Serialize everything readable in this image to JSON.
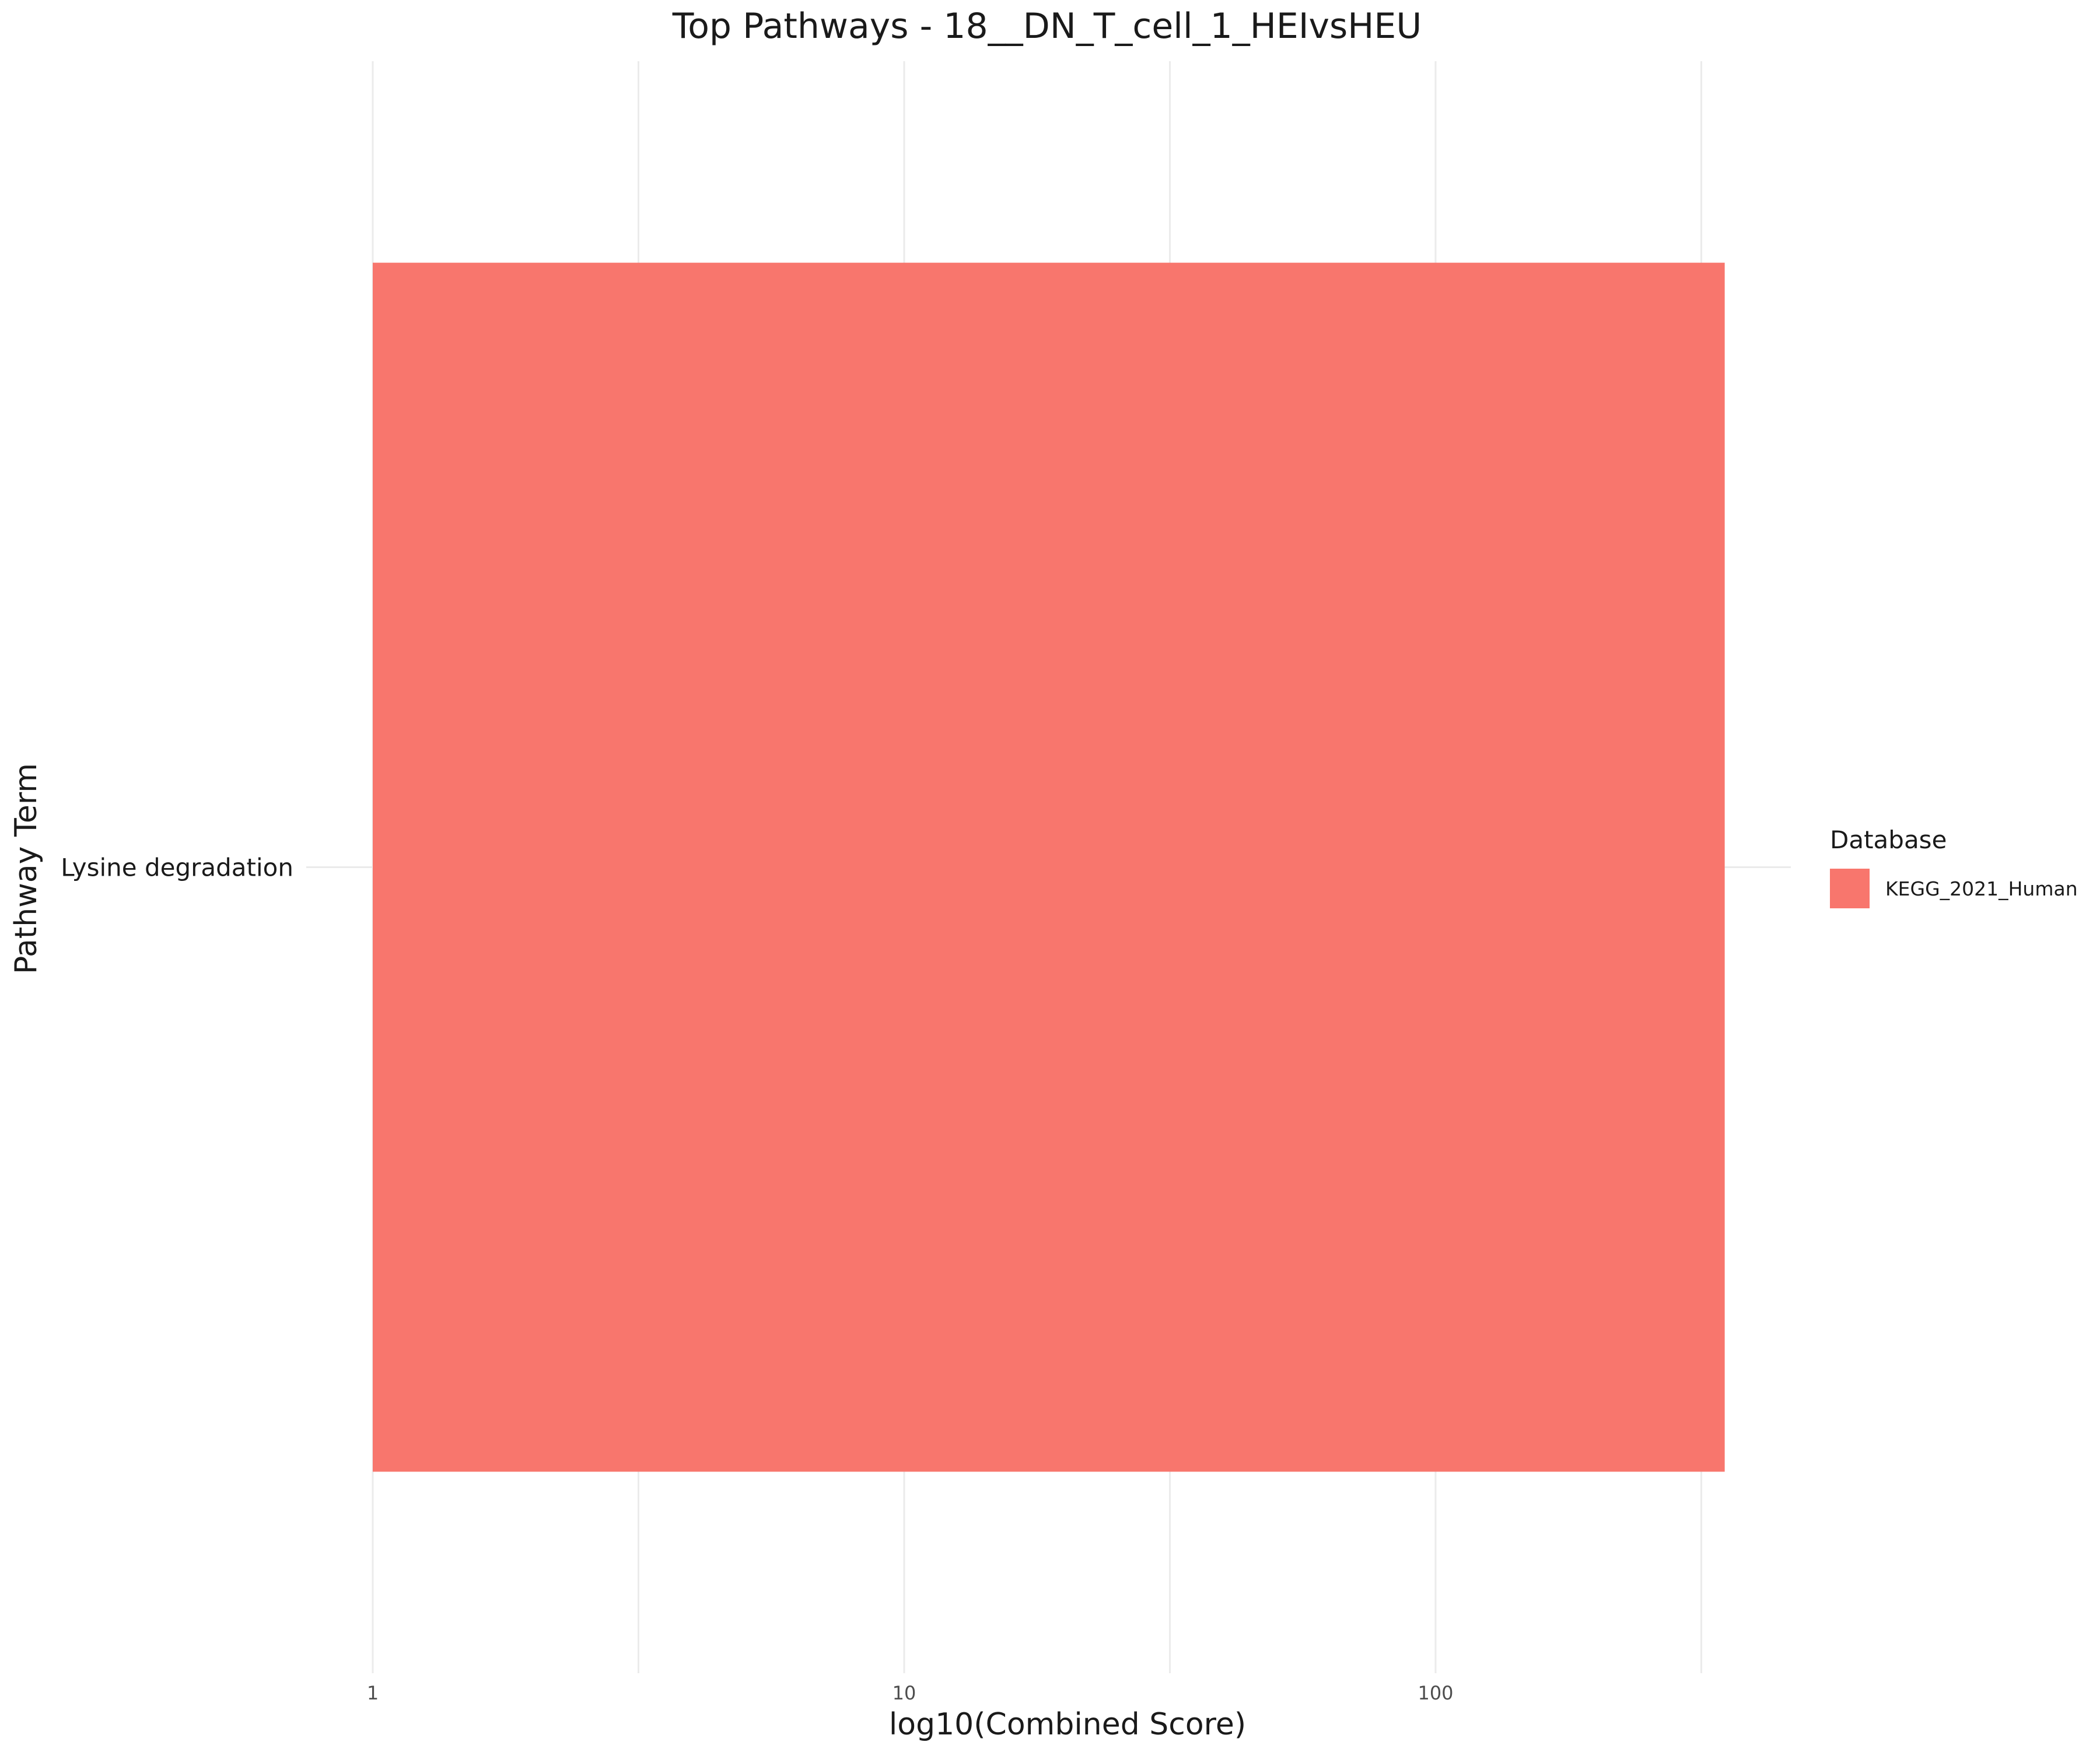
{
  "chart_data": {
    "type": "bar",
    "orientation": "horizontal",
    "title": "Top Pathways - 18__DN_T_cell_1_HEIvsHEU",
    "xlabel": "log10(Combined Score)",
    "ylabel": "Pathway Term",
    "x_scale": "log10",
    "xlim": [
      0.8,
      500
    ],
    "x_ticks": [
      1,
      10,
      100
    ],
    "x_tick_labels": [
      "1",
      "10",
      "100"
    ],
    "grid": true,
    "categories": [
      "Lysine degradation"
    ],
    "series": [
      {
        "name": "KEGG_2021_Human",
        "color": "#F8766D",
        "values": [
          350
        ]
      }
    ],
    "legend": {
      "title": "Database",
      "position": "right",
      "entries": [
        {
          "label": "KEGG_2021_Human",
          "color": "#F8766D"
        }
      ]
    }
  }
}
